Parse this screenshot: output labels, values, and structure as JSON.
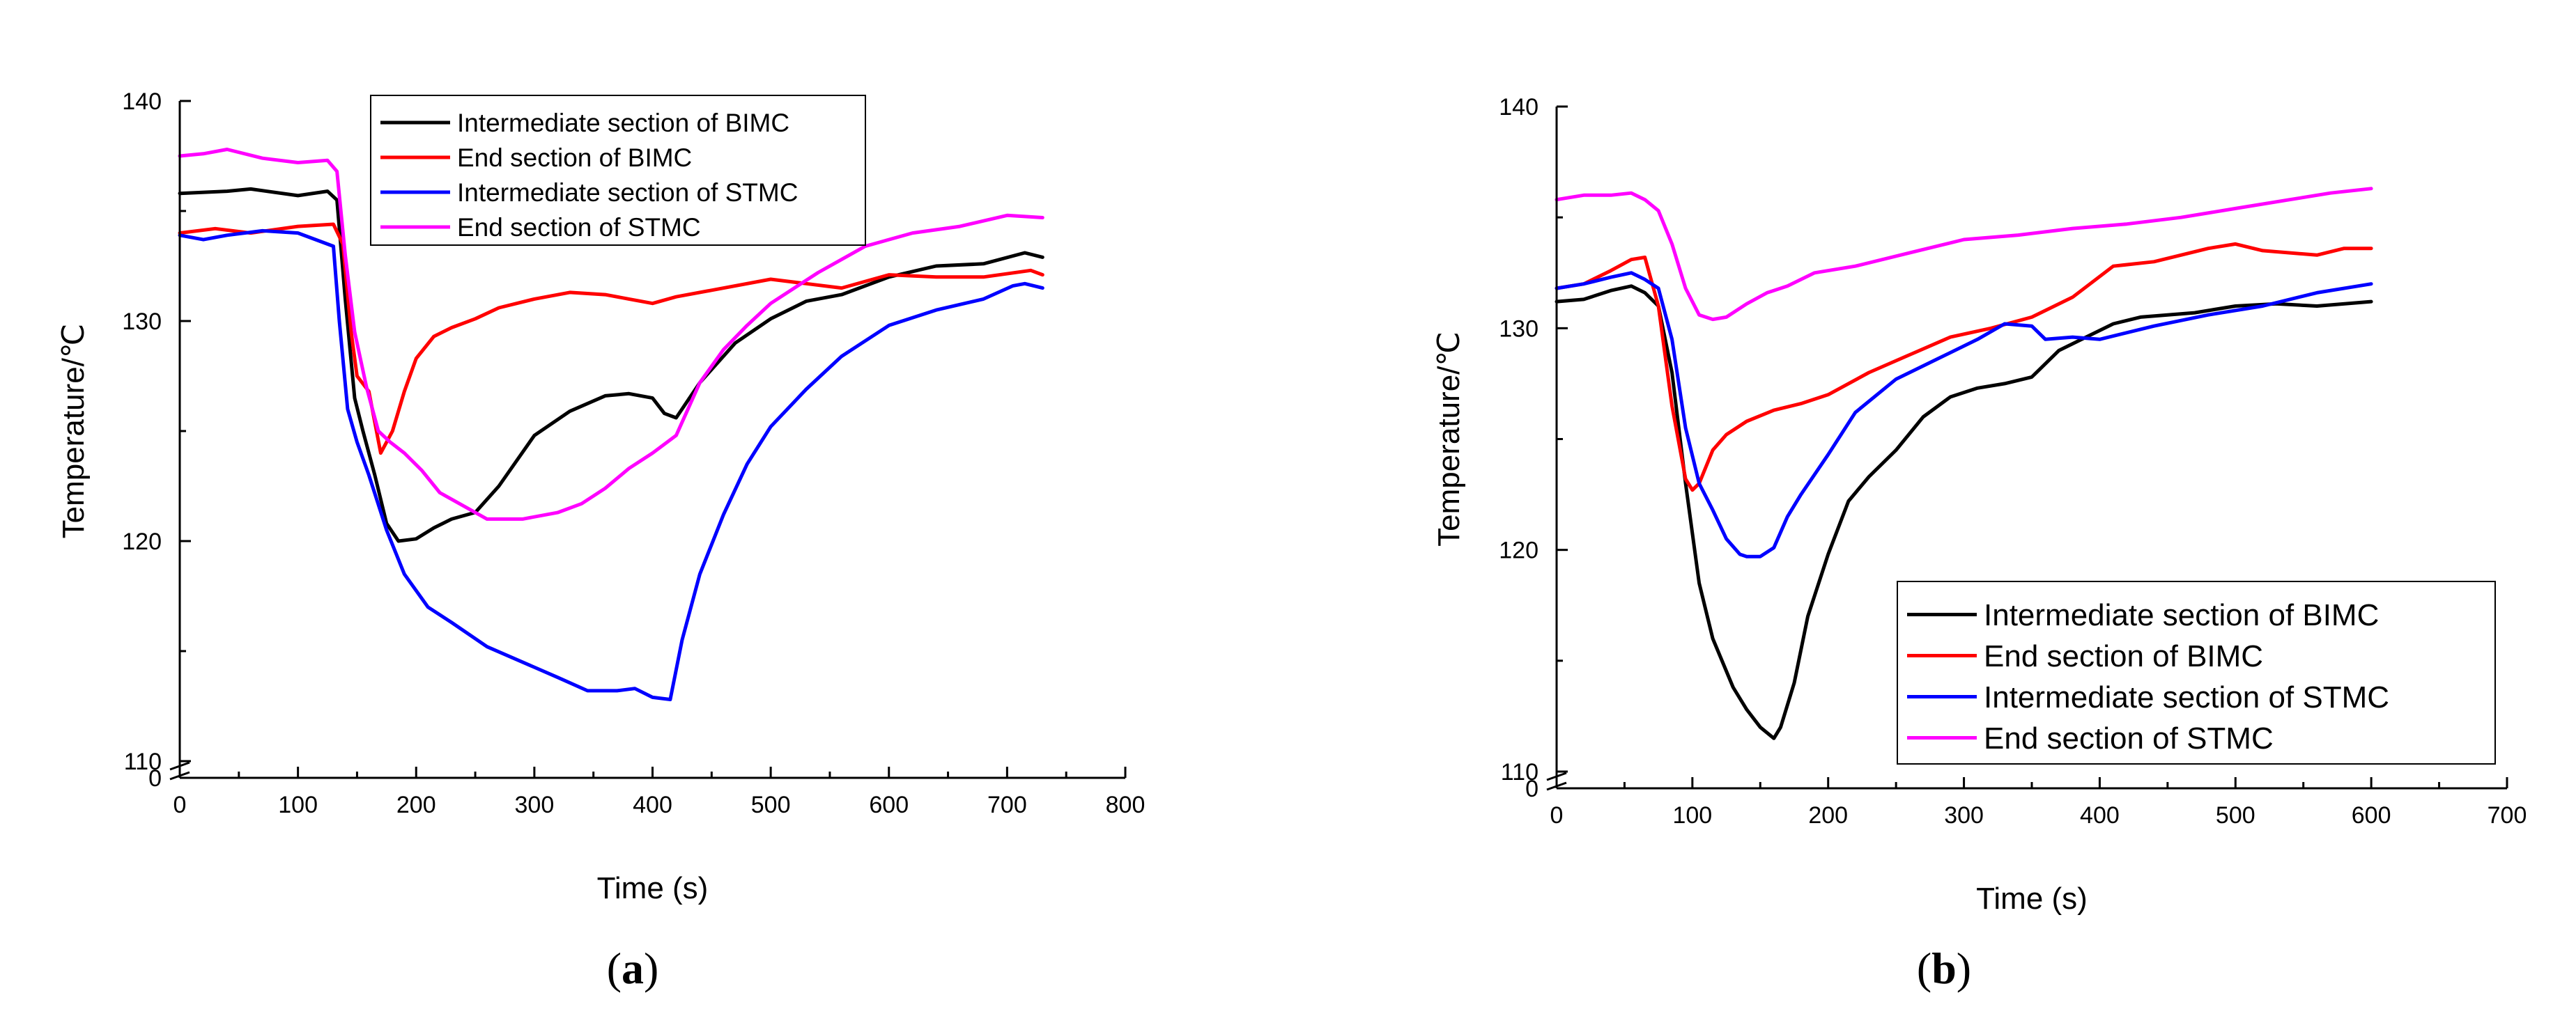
{
  "figure": {
    "panel_a_label": "a",
    "panel_b_label": "b"
  },
  "chart_data": [
    {
      "type": "line",
      "panel": "a",
      "xlabel": "Time (s)",
      "ylabel": "Temperature/℃",
      "xlim": [
        0,
        800
      ],
      "ylim": [
        110,
        140
      ],
      "broken_axis_zero": "0",
      "xticks": [
        0,
        100,
        200,
        300,
        400,
        500,
        600,
        700,
        800
      ],
      "yticks": [
        110,
        120,
        130,
        140
      ],
      "legend_position": "top-center",
      "series": [
        {
          "name": "Intermediate section of BIMC",
          "color": "#000000",
          "x": [
            0,
            40,
            60,
            100,
            125,
            133,
            140,
            148,
            155,
            165,
            175,
            185,
            200,
            215,
            230,
            250,
            270,
            300,
            330,
            360,
            380,
            400,
            410,
            420,
            440,
            470,
            500,
            530,
            560,
            600,
            640,
            680,
            715,
            730
          ],
          "y": [
            135.8,
            135.9,
            136.0,
            135.7,
            135.9,
            135.5,
            131.0,
            126.5,
            125.0,
            123.0,
            120.8,
            120.0,
            120.1,
            120.6,
            121.0,
            121.3,
            122.5,
            124.8,
            125.9,
            126.6,
            126.7,
            126.5,
            125.8,
            125.6,
            127.2,
            129.0,
            130.1,
            130.9,
            131.2,
            132.0,
            132.5,
            132.6,
            133.1,
            132.9
          ]
        },
        {
          "name": "End section of BIMC",
          "color": "#ff0000",
          "x": [
            0,
            30,
            60,
            100,
            130,
            138,
            145,
            150,
            160,
            170,
            180,
            190,
            200,
            215,
            230,
            250,
            270,
            300,
            330,
            360,
            380,
            400,
            420,
            450,
            500,
            530,
            560,
            600,
            640,
            680,
            720,
            730
          ],
          "y": [
            134.0,
            134.2,
            134.0,
            134.3,
            134.4,
            133.5,
            129.5,
            127.5,
            126.8,
            124.0,
            125.0,
            126.8,
            128.3,
            129.3,
            129.7,
            130.1,
            130.6,
            131.0,
            131.3,
            131.2,
            131.0,
            130.8,
            131.1,
            131.4,
            131.9,
            131.7,
            131.5,
            132.1,
            132.0,
            132.0,
            132.3,
            132.1
          ]
        },
        {
          "name": "Intermediate section of STMC",
          "color": "#0000ff",
          "x": [
            0,
            20,
            40,
            70,
            100,
            130,
            135,
            142,
            150,
            160,
            175,
            190,
            210,
            230,
            260,
            290,
            320,
            345,
            370,
            385,
            400,
            415,
            425,
            440,
            460,
            480,
            500,
            530,
            560,
            600,
            640,
            680,
            705,
            715,
            730
          ],
          "y": [
            133.9,
            133.7,
            133.9,
            134.1,
            134.0,
            133.4,
            130.0,
            126.0,
            124.5,
            123.0,
            120.5,
            118.5,
            117.0,
            116.3,
            115.2,
            114.5,
            113.8,
            113.2,
            113.2,
            113.3,
            112.9,
            112.8,
            115.5,
            118.5,
            121.2,
            123.5,
            125.2,
            126.9,
            128.4,
            129.8,
            130.5,
            131.0,
            131.6,
            131.7,
            131.5
          ]
        },
        {
          "name": "End section of STMC",
          "color": "#ff00ff",
          "x": [
            0,
            20,
            40,
            70,
            100,
            125,
            133,
            140,
            148,
            158,
            168,
            178,
            190,
            205,
            220,
            240,
            260,
            290,
            320,
            340,
            360,
            380,
            400,
            420,
            440,
            460,
            480,
            500,
            540,
            580,
            620,
            660,
            700,
            730
          ],
          "y": [
            137.5,
            137.6,
            137.8,
            137.4,
            137.2,
            137.3,
            136.8,
            133.0,
            129.5,
            127.0,
            125.0,
            124.5,
            124.0,
            123.2,
            122.2,
            121.6,
            121.0,
            121.0,
            121.3,
            121.7,
            122.4,
            123.3,
            124.0,
            124.8,
            127.2,
            128.7,
            129.8,
            130.8,
            132.2,
            133.4,
            134.0,
            134.3,
            134.8,
            134.7
          ]
        }
      ]
    },
    {
      "type": "line",
      "panel": "b",
      "xlabel": "Time (s)",
      "ylabel": "Temperature/℃",
      "xlim": [
        0,
        700
      ],
      "ylim": [
        110,
        140
      ],
      "broken_axis_zero": "0",
      "xticks": [
        0,
        100,
        200,
        300,
        400,
        500,
        600,
        700
      ],
      "yticks": [
        110,
        120,
        130,
        140
      ],
      "legend_position": "bottom-right",
      "series": [
        {
          "name": "Intermediate section of BIMC",
          "color": "#000000",
          "x": [
            0,
            20,
            40,
            55,
            65,
            75,
            85,
            95,
            105,
            115,
            130,
            140,
            150,
            160,
            165,
            175,
            185,
            200,
            215,
            230,
            250,
            270,
            290,
            310,
            330,
            350,
            370,
            390,
            410,
            430,
            470,
            500,
            530,
            560,
            600
          ],
          "y": [
            131.2,
            131.3,
            131.7,
            131.9,
            131.6,
            131.0,
            128.0,
            123.0,
            118.5,
            116.0,
            113.8,
            112.8,
            112.0,
            111.5,
            112.0,
            114.0,
            117.0,
            119.8,
            122.2,
            123.3,
            124.5,
            126.0,
            126.9,
            127.3,
            127.5,
            127.8,
            129.0,
            129.6,
            130.2,
            130.5,
            130.7,
            131.0,
            131.1,
            131.0,
            131.2
          ]
        },
        {
          "name": "End section of BIMC",
          "color": "#ff0000",
          "x": [
            0,
            20,
            40,
            55,
            65,
            75,
            85,
            95,
            100,
            105,
            115,
            125,
            140,
            160,
            180,
            200,
            230,
            260,
            290,
            320,
            350,
            380,
            410,
            440,
            480,
            500,
            520,
            560,
            580,
            600
          ],
          "y": [
            131.8,
            132.0,
            132.6,
            133.1,
            133.2,
            131.0,
            126.5,
            123.2,
            122.7,
            123.0,
            124.5,
            125.2,
            125.8,
            126.3,
            126.6,
            127.0,
            128.0,
            128.8,
            129.6,
            130.0,
            130.5,
            131.4,
            132.8,
            133.0,
            133.6,
            133.8,
            133.5,
            133.3,
            133.6,
            133.6
          ]
        },
        {
          "name": "Intermediate section of STMC",
          "color": "#0000ff",
          "x": [
            0,
            20,
            40,
            55,
            65,
            75,
            85,
            95,
            105,
            115,
            125,
            135,
            140,
            150,
            160,
            170,
            180,
            200,
            220,
            250,
            280,
            310,
            330,
            350,
            360,
            380,
            400,
            440,
            480,
            520,
            560,
            600
          ],
          "y": [
            131.8,
            132.0,
            132.3,
            132.5,
            132.2,
            131.8,
            129.5,
            125.5,
            123.0,
            121.8,
            120.5,
            119.8,
            119.7,
            119.7,
            120.1,
            121.5,
            122.5,
            124.3,
            126.2,
            127.7,
            128.6,
            129.5,
            130.2,
            130.1,
            129.5,
            129.6,
            129.5,
            130.1,
            130.6,
            131.0,
            131.6,
            132.0
          ]
        },
        {
          "name": "End section of STMC",
          "color": "#ff00ff",
          "x": [
            0,
            20,
            40,
            55,
            65,
            75,
            85,
            95,
            105,
            115,
            125,
            140,
            155,
            170,
            190,
            220,
            260,
            300,
            340,
            380,
            420,
            460,
            500,
            540,
            570,
            600
          ],
          "y": [
            135.8,
            136.0,
            136.0,
            136.1,
            135.8,
            135.3,
            133.8,
            131.8,
            130.6,
            130.4,
            130.5,
            131.1,
            131.6,
            131.9,
            132.5,
            132.8,
            133.4,
            134.0,
            134.2,
            134.5,
            134.7,
            135.0,
            135.4,
            135.8,
            136.1,
            136.3
          ]
        }
      ]
    }
  ]
}
